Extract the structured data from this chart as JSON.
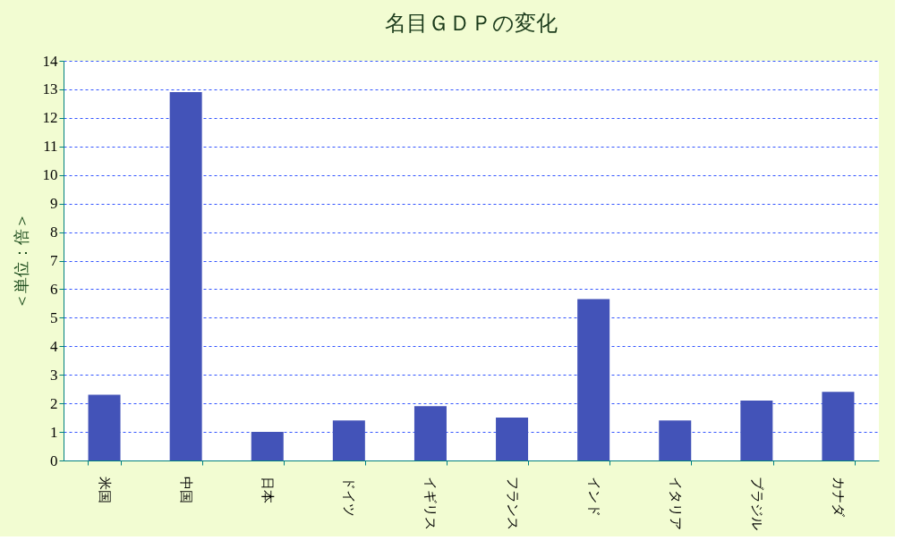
{
  "chart_data": {
    "type": "bar",
    "title": "名目ＧＤＰの変化",
    "ylabel": "＜単位：倍＞",
    "categories": [
      "米国",
      "中国",
      "日本",
      "ドイツ",
      "イギリス",
      "フランス",
      "インド",
      "イタリア",
      "ブラジル",
      "カナダ"
    ],
    "values": [
      2.3,
      12.9,
      1.0,
      1.4,
      1.9,
      1.5,
      5.65,
      1.4,
      2.1,
      2.4
    ],
    "color": "#4353b8",
    "ylim": [
      0,
      14
    ],
    "yticks": [
      0,
      1,
      2,
      3,
      4,
      5,
      6,
      7,
      8,
      9,
      10,
      11,
      12,
      13,
      14
    ],
    "grid": "y"
  }
}
